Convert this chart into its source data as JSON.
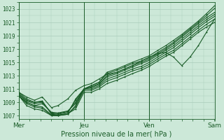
{
  "xlabel": "Pression niveau de la mer( hPa )",
  "bg_color": "#cce8d8",
  "grid_color": "#aaccbb",
  "line_color": "#1a5c28",
  "ylim": [
    1006.5,
    1024.0
  ],
  "yticks": [
    1007,
    1009,
    1011,
    1013,
    1015,
    1017,
    1019,
    1021,
    1023
  ],
  "xtick_labels": [
    "Mer",
    "Jeu",
    "Ven",
    "Sam"
  ],
  "xtick_positions": [
    0,
    0.333,
    0.667,
    1.0
  ],
  "series": [
    {
      "x": [
        0.0,
        0.04,
        0.08,
        0.12,
        0.167,
        0.2,
        0.25,
        0.29,
        0.333,
        0.37,
        0.41,
        0.45,
        0.5,
        0.54,
        0.58,
        0.625,
        0.667,
        0.71,
        0.75,
        0.79,
        0.833,
        0.875,
        0.917,
        0.958,
        1.0
      ],
      "y": [
        1010.5,
        1009.5,
        1009.0,
        1009.2,
        1007.2,
        1007.1,
        1007.3,
        1009.5,
        1011.0,
        1011.5,
        1012.0,
        1013.5,
        1014.0,
        1014.5,
        1015.0,
        1015.5,
        1016.0,
        1016.8,
        1017.5,
        1018.3,
        1019.2,
        1020.2,
        1021.2,
        1022.3,
        1023.5
      ]
    },
    {
      "x": [
        0.0,
        0.04,
        0.08,
        0.12,
        0.167,
        0.2,
        0.25,
        0.29,
        0.333,
        0.37,
        0.41,
        0.45,
        0.5,
        0.54,
        0.58,
        0.625,
        0.667,
        0.71,
        0.75,
        0.79,
        0.833,
        0.875,
        0.917,
        0.958,
        1.0
      ],
      "y": [
        1010.3,
        1009.3,
        1009.0,
        1009.1,
        1007.3,
        1007.2,
        1007.5,
        1009.3,
        1011.0,
        1011.5,
        1012.0,
        1013.3,
        1013.8,
        1014.3,
        1014.8,
        1015.2,
        1015.7,
        1016.5,
        1017.2,
        1018.0,
        1019.0,
        1020.0,
        1021.0,
        1022.0,
        1023.1
      ]
    },
    {
      "x": [
        0.0,
        0.04,
        0.08,
        0.12,
        0.167,
        0.2,
        0.25,
        0.29,
        0.333,
        0.37,
        0.41,
        0.45,
        0.5,
        0.54,
        0.58,
        0.625,
        0.667,
        0.71,
        0.75,
        0.79,
        0.833,
        0.875,
        0.917,
        0.958,
        1.0
      ],
      "y": [
        1010.2,
        1009.2,
        1008.8,
        1009.0,
        1007.4,
        1007.3,
        1007.6,
        1009.0,
        1011.0,
        1011.3,
        1011.8,
        1013.0,
        1013.5,
        1014.0,
        1014.5,
        1015.0,
        1015.5,
        1016.3,
        1017.0,
        1017.8,
        1018.8,
        1019.8,
        1020.8,
        1021.7,
        1022.5
      ]
    },
    {
      "x": [
        0.0,
        0.04,
        0.08,
        0.12,
        0.167,
        0.2,
        0.25,
        0.29,
        0.333,
        0.37,
        0.41,
        0.45,
        0.5,
        0.54,
        0.58,
        0.625,
        0.667,
        0.71,
        0.75,
        0.79,
        0.833,
        0.875,
        0.917,
        0.958,
        1.0
      ],
      "y": [
        1010.0,
        1009.0,
        1008.5,
        1008.8,
        1007.5,
        1007.4,
        1007.7,
        1008.8,
        1011.0,
        1011.2,
        1011.7,
        1012.8,
        1013.3,
        1013.8,
        1014.3,
        1014.8,
        1015.3,
        1016.1,
        1016.8,
        1017.5,
        1018.5,
        1019.5,
        1020.5,
        1021.4,
        1022.2
      ]
    },
    {
      "x": [
        0.0,
        0.04,
        0.08,
        0.12,
        0.167,
        0.2,
        0.25,
        0.29,
        0.333,
        0.37,
        0.41,
        0.45,
        0.5,
        0.54,
        0.58,
        0.625,
        0.667,
        0.71,
        0.75,
        0.79,
        0.833,
        0.875,
        0.917,
        0.958,
        1.0
      ],
      "y": [
        1010.0,
        1009.0,
        1008.5,
        1008.3,
        1007.1,
        1007.0,
        1007.2,
        1008.5,
        1011.0,
        1011.0,
        1011.5,
        1012.5,
        1013.0,
        1013.5,
        1014.0,
        1014.4,
        1015.0,
        1015.8,
        1016.5,
        1017.2,
        1018.2,
        1019.2,
        1020.2,
        1021.1,
        1021.9
      ]
    },
    {
      "x": [
        0.0,
        0.04,
        0.08,
        0.12,
        0.167,
        0.2,
        0.25,
        0.29,
        0.333,
        0.37,
        0.41,
        0.45,
        0.5,
        0.54,
        0.58,
        0.625,
        0.667,
        0.71,
        0.75,
        0.79,
        0.833,
        0.875,
        0.917,
        0.958,
        1.0
      ],
      "y": [
        1010.0,
        1008.8,
        1008.3,
        1008.1,
        1007.0,
        1007.0,
        1007.2,
        1008.3,
        1010.8,
        1010.8,
        1011.3,
        1012.2,
        1012.7,
        1013.2,
        1013.7,
        1014.1,
        1014.7,
        1015.5,
        1016.2,
        1016.8,
        1017.8,
        1018.8,
        1019.8,
        1020.7,
        1021.5
      ]
    },
    {
      "x": [
        0.0,
        0.04,
        0.08,
        0.12,
        0.167,
        0.2,
        0.25,
        0.29,
        0.333,
        0.37,
        0.41,
        0.45,
        0.5,
        0.54,
        0.58,
        0.625,
        0.667,
        0.71,
        0.75,
        0.79,
        0.833,
        0.875,
        0.917,
        0.958,
        1.0
      ],
      "y": [
        1010.0,
        1008.5,
        1008.0,
        1007.8,
        1007.0,
        1007.0,
        1007.3,
        1008.0,
        1010.5,
        1010.5,
        1011.0,
        1011.8,
        1012.3,
        1012.8,
        1013.3,
        1013.8,
        1014.4,
        1015.2,
        1015.9,
        1016.5,
        1017.5,
        1018.5,
        1019.5,
        1020.3,
        1021.0
      ]
    },
    {
      "x": [
        0.0,
        0.04,
        0.08,
        0.12,
        0.167,
        0.2,
        0.25,
        0.29,
        0.333,
        0.37,
        0.41,
        0.45,
        0.5,
        0.54,
        0.58,
        0.625,
        0.667,
        0.71,
        0.75,
        0.79,
        0.833,
        0.875,
        0.917,
        0.958,
        1.0
      ],
      "y": [
        1010.5,
        1009.8,
        1009.3,
        1009.8,
        1008.2,
        1008.5,
        1009.5,
        1010.8,
        1011.5,
        1011.8,
        1012.5,
        1013.2,
        1013.5,
        1014.0,
        1014.5,
        1015.2,
        1015.8,
        1016.3,
        1016.5,
        1015.8,
        1014.5,
        1015.8,
        1017.5,
        1019.5,
        1021.5
      ]
    }
  ]
}
